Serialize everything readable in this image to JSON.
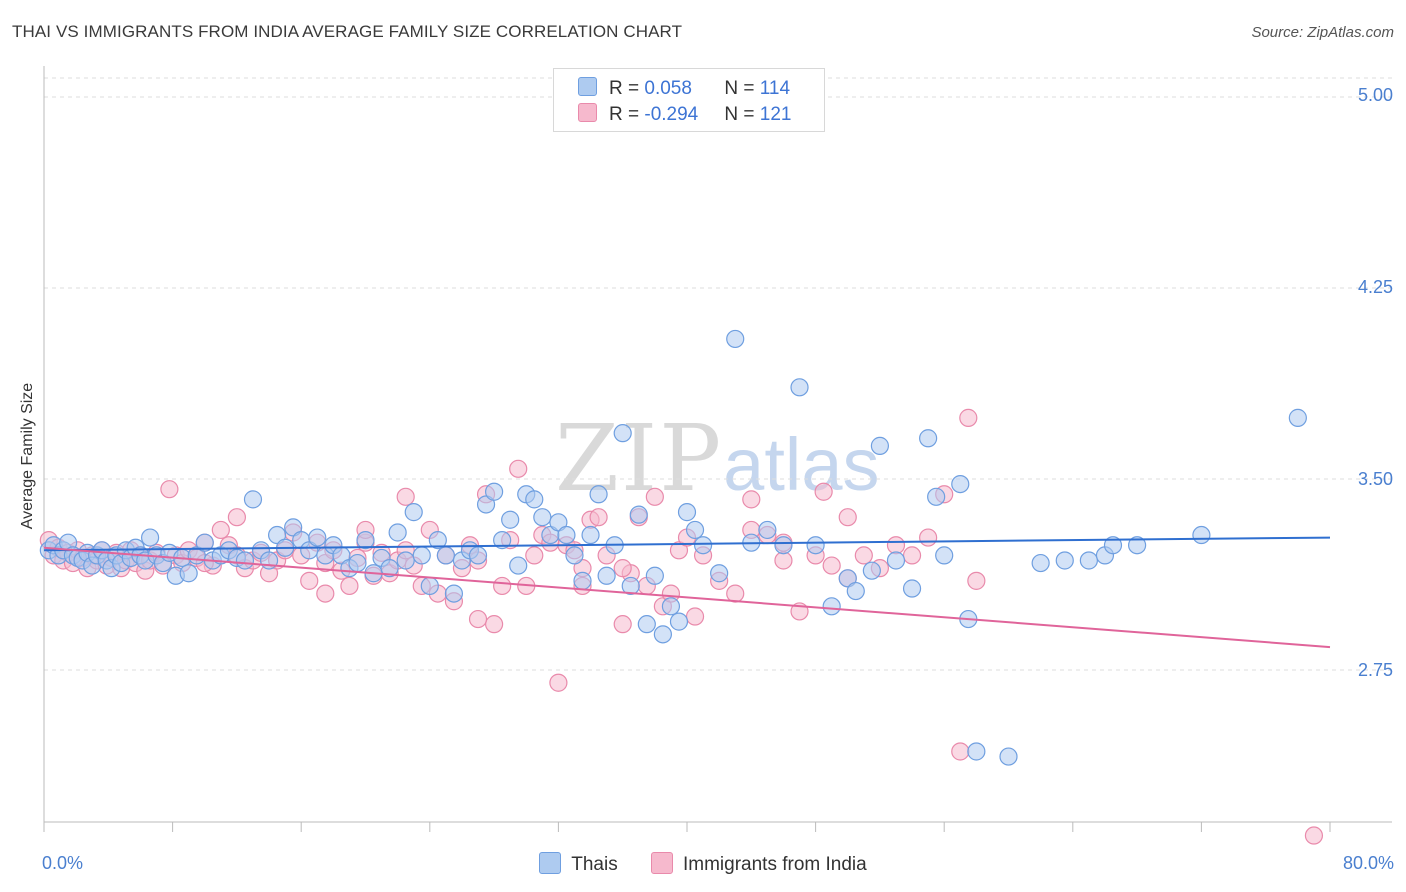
{
  "header": {
    "title": "THAI VS IMMIGRANTS FROM INDIA AVERAGE FAMILY SIZE CORRELATION CHART",
    "source": "Source: ZipAtlas.com"
  },
  "watermark": {
    "zip": "ZIP",
    "atlas": "atlas"
  },
  "legend": {
    "rows": [
      {
        "r_label": "R = ",
        "r_value": "0.058",
        "n_label": "N = ",
        "n_value": "114"
      },
      {
        "r_label": "R = ",
        "r_value": "-0.294",
        "n_label": "N = ",
        "n_value": "121"
      }
    ]
  },
  "colors": {
    "thais_fill": "#aecbf0",
    "thais_stroke": "#6f9fe0",
    "thais_line": "#2f6fd0",
    "india_fill": "#f6b9cd",
    "india_stroke": "#e98aab",
    "india_line": "#e0649a",
    "grid": "#dddddd",
    "tick_text": "#4a7fcf"
  },
  "axes": {
    "ylabel": "Average Family Size",
    "y_ticks": [
      "5.00",
      "4.25",
      "3.50",
      "2.75"
    ],
    "x_min_label": "0.0%",
    "x_max_label": "80.0%"
  },
  "bottom_legend": {
    "thais": "Thais",
    "india": "Immigrants from India"
  },
  "chart_data": {
    "type": "scatter",
    "title": "THAI VS IMMIGRANTS FROM INDIA AVERAGE FAMILY SIZE CORRELATION CHART",
    "xlabel": "",
    "ylabel": "Average Family Size",
    "xlim": [
      0,
      80
    ],
    "ylim": [
      2.0,
      5.1
    ],
    "y_ticks": [
      2.75,
      3.5,
      4.25,
      5.0
    ],
    "grid": true,
    "legend_placement": "top-center",
    "series": [
      {
        "name": "Thais",
        "r": 0.058,
        "n": 114,
        "trend": {
          "x": [
            0,
            80
          ],
          "y": [
            3.22,
            3.27
          ]
        },
        "points": [
          [
            0.3,
            3.22
          ],
          [
            0.6,
            3.24
          ],
          [
            0.9,
            3.2
          ],
          [
            1.2,
            3.22
          ],
          [
            1.5,
            3.25
          ],
          [
            1.8,
            3.2
          ],
          [
            2.1,
            3.19
          ],
          [
            2.4,
            3.18
          ],
          [
            2.7,
            3.21
          ],
          [
            3.0,
            3.16
          ],
          [
            3.3,
            3.2
          ],
          [
            3.6,
            3.22
          ],
          [
            3.9,
            3.18
          ],
          [
            4.2,
            3.15
          ],
          [
            4.5,
            3.2
          ],
          [
            4.8,
            3.17
          ],
          [
            5.1,
            3.22
          ],
          [
            5.4,
            3.19
          ],
          [
            5.7,
            3.23
          ],
          [
            6.0,
            3.2
          ],
          [
            6.3,
            3.18
          ],
          [
            6.6,
            3.27
          ],
          [
            7.0,
            3.2
          ],
          [
            7.4,
            3.17
          ],
          [
            7.8,
            3.21
          ],
          [
            8.2,
            3.12
          ],
          [
            8.6,
            3.19
          ],
          [
            9.0,
            3.13
          ],
          [
            9.5,
            3.2
          ],
          [
            10.0,
            3.25
          ],
          [
            10.5,
            3.18
          ],
          [
            11.0,
            3.2
          ],
          [
            11.5,
            3.22
          ],
          [
            12.0,
            3.19
          ],
          [
            12.5,
            3.18
          ],
          [
            13.0,
            3.42
          ],
          [
            13.5,
            3.22
          ],
          [
            14.0,
            3.18
          ],
          [
            14.5,
            3.28
          ],
          [
            15.0,
            3.23
          ],
          [
            15.5,
            3.31
          ],
          [
            16.0,
            3.26
          ],
          [
            16.5,
            3.22
          ],
          [
            17.0,
            3.27
          ],
          [
            17.5,
            3.2
          ],
          [
            18.0,
            3.24
          ],
          [
            18.5,
            3.2
          ],
          [
            19.0,
            3.15
          ],
          [
            19.5,
            3.17
          ],
          [
            20.0,
            3.26
          ],
          [
            20.5,
            3.13
          ],
          [
            21.0,
            3.19
          ],
          [
            21.5,
            3.15
          ],
          [
            22.0,
            3.29
          ],
          [
            22.5,
            3.18
          ],
          [
            23.0,
            3.37
          ],
          [
            23.5,
            3.2
          ],
          [
            24.0,
            3.08
          ],
          [
            24.5,
            3.26
          ],
          [
            25.0,
            3.2
          ],
          [
            25.5,
            3.05
          ],
          [
            26.0,
            3.18
          ],
          [
            26.5,
            3.22
          ],
          [
            27.0,
            3.2
          ],
          [
            27.5,
            3.4
          ],
          [
            28.0,
            3.45
          ],
          [
            28.5,
            3.26
          ],
          [
            29.0,
            3.34
          ],
          [
            29.5,
            3.16
          ],
          [
            30.0,
            3.44
          ],
          [
            30.5,
            3.42
          ],
          [
            31.0,
            3.35
          ],
          [
            31.5,
            3.28
          ],
          [
            32.0,
            3.33
          ],
          [
            32.5,
            3.28
          ],
          [
            33.0,
            3.2
          ],
          [
            33.5,
            3.1
          ],
          [
            34.0,
            3.28
          ],
          [
            34.5,
            3.44
          ],
          [
            35.0,
            3.12
          ],
          [
            35.5,
            3.24
          ],
          [
            36.0,
            3.68
          ],
          [
            36.5,
            3.08
          ],
          [
            37.0,
            3.36
          ],
          [
            37.5,
            2.93
          ],
          [
            38.0,
            3.12
          ],
          [
            38.5,
            2.89
          ],
          [
            39.0,
            3.0
          ],
          [
            39.5,
            2.94
          ],
          [
            40.0,
            3.37
          ],
          [
            40.5,
            3.3
          ],
          [
            41.0,
            3.24
          ],
          [
            42.0,
            3.13
          ],
          [
            43.0,
            4.05
          ],
          [
            44.0,
            3.25
          ],
          [
            45.0,
            3.3
          ],
          [
            46.0,
            3.24
          ],
          [
            47.0,
            3.86
          ],
          [
            48.0,
            3.24
          ],
          [
            49.0,
            3.0
          ],
          [
            50.0,
            3.11
          ],
          [
            50.5,
            3.06
          ],
          [
            51.5,
            3.14
          ],
          [
            52.0,
            3.63
          ],
          [
            53.0,
            3.18
          ],
          [
            54.0,
            3.07
          ],
          [
            55.0,
            3.66
          ],
          [
            55.5,
            3.43
          ],
          [
            56.0,
            3.2
          ],
          [
            57.0,
            3.48
          ],
          [
            57.5,
            2.95
          ],
          [
            58.0,
            2.43
          ],
          [
            60.0,
            2.41
          ],
          [
            62.0,
            3.17
          ],
          [
            63.5,
            3.18
          ],
          [
            65.0,
            3.18
          ],
          [
            66.0,
            3.2
          ],
          [
            66.5,
            3.24
          ],
          [
            68.0,
            3.24
          ],
          [
            72.0,
            3.28
          ],
          [
            78.0,
            3.74
          ]
        ]
      },
      {
        "name": "Immigrants from India",
        "r": -0.294,
        "n": 121,
        "trend": {
          "x": [
            0,
            80
          ],
          "y": [
            3.23,
            2.84
          ]
        },
        "points": [
          [
            0.3,
            3.26
          ],
          [
            0.6,
            3.2
          ],
          [
            0.9,
            3.23
          ],
          [
            1.2,
            3.18
          ],
          [
            1.5,
            3.21
          ],
          [
            1.8,
            3.17
          ],
          [
            2.1,
            3.22
          ],
          [
            2.4,
            3.19
          ],
          [
            2.7,
            3.15
          ],
          [
            3.0,
            3.2
          ],
          [
            3.3,
            3.18
          ],
          [
            3.6,
            3.22
          ],
          [
            3.9,
            3.16
          ],
          [
            4.2,
            3.19
          ],
          [
            4.5,
            3.21
          ],
          [
            4.8,
            3.15
          ],
          [
            5.1,
            3.18
          ],
          [
            5.4,
            3.22
          ],
          [
            5.7,
            3.17
          ],
          [
            6.0,
            3.2
          ],
          [
            6.3,
            3.14
          ],
          [
            6.6,
            3.18
          ],
          [
            7.0,
            3.21
          ],
          [
            7.4,
            3.16
          ],
          [
            7.8,
            3.46
          ],
          [
            8.2,
            3.2
          ],
          [
            8.6,
            3.17
          ],
          [
            9.0,
            3.22
          ],
          [
            9.5,
            3.19
          ],
          [
            10.0,
            3.25
          ],
          [
            10.5,
            3.16
          ],
          [
            11.0,
            3.3
          ],
          [
            11.5,
            3.24
          ],
          [
            12.0,
            3.2
          ],
          [
            12.5,
            3.15
          ],
          [
            13.0,
            3.18
          ],
          [
            13.5,
            3.21
          ],
          [
            14.0,
            3.13
          ],
          [
            14.5,
            3.18
          ],
          [
            15.0,
            3.22
          ],
          [
            15.5,
            3.29
          ],
          [
            16.0,
            3.2
          ],
          [
            16.5,
            3.1
          ],
          [
            17.0,
            3.25
          ],
          [
            17.5,
            3.17
          ],
          [
            18.0,
            3.22
          ],
          [
            18.5,
            3.14
          ],
          [
            19.0,
            3.08
          ],
          [
            19.5,
            3.19
          ],
          [
            20.0,
            3.25
          ],
          [
            20.5,
            3.12
          ],
          [
            21.0,
            3.21
          ],
          [
            21.5,
            3.13
          ],
          [
            22.0,
            3.18
          ],
          [
            22.5,
            3.22
          ],
          [
            23.0,
            3.16
          ],
          [
            23.5,
            3.08
          ],
          [
            24.0,
            3.3
          ],
          [
            24.5,
            3.05
          ],
          [
            25.0,
            3.2
          ],
          [
            25.5,
            3.02
          ],
          [
            26.0,
            3.15
          ],
          [
            26.5,
            3.24
          ],
          [
            27.0,
            3.18
          ],
          [
            27.5,
            3.44
          ],
          [
            28.0,
            2.93
          ],
          [
            28.5,
            3.08
          ],
          [
            29.0,
            3.26
          ],
          [
            29.5,
            3.54
          ],
          [
            30.0,
            3.08
          ],
          [
            30.5,
            3.2
          ],
          [
            31.0,
            3.28
          ],
          [
            31.5,
            3.25
          ],
          [
            32.0,
            2.7
          ],
          [
            32.5,
            3.24
          ],
          [
            33.0,
            3.22
          ],
          [
            33.5,
            3.08
          ],
          [
            34.0,
            3.34
          ],
          [
            34.5,
            3.35
          ],
          [
            35.0,
            3.2
          ],
          [
            36.0,
            2.93
          ],
          [
            36.5,
            3.13
          ],
          [
            37.0,
            3.35
          ],
          [
            37.5,
            3.08
          ],
          [
            38.0,
            3.43
          ],
          [
            38.5,
            3.0
          ],
          [
            39.0,
            3.05
          ],
          [
            39.5,
            3.22
          ],
          [
            40.0,
            3.27
          ],
          [
            40.5,
            2.96
          ],
          [
            41.0,
            3.2
          ],
          [
            42.0,
            3.1
          ],
          [
            43.0,
            3.05
          ],
          [
            44.0,
            3.42
          ],
          [
            45.0,
            3.28
          ],
          [
            46.0,
            3.18
          ],
          [
            47.0,
            2.98
          ],
          [
            48.0,
            3.2
          ],
          [
            49.0,
            3.16
          ],
          [
            50.0,
            3.11
          ],
          [
            51.0,
            3.2
          ],
          [
            52.0,
            3.15
          ],
          [
            53.0,
            3.24
          ],
          [
            54.0,
            3.2
          ],
          [
            55.0,
            3.27
          ],
          [
            56.0,
            3.44
          ],
          [
            57.0,
            2.43
          ],
          [
            57.5,
            3.74
          ],
          [
            58.0,
            3.1
          ],
          [
            27.0,
            2.95
          ],
          [
            20.0,
            3.3
          ],
          [
            22.5,
            3.43
          ],
          [
            33.5,
            3.15
          ],
          [
            36.0,
            3.15
          ],
          [
            12.0,
            3.35
          ],
          [
            10.0,
            3.17
          ],
          [
            17.5,
            3.05
          ],
          [
            44.0,
            3.3
          ],
          [
            46.0,
            3.25
          ],
          [
            48.5,
            3.45
          ],
          [
            50.0,
            3.35
          ],
          [
            79.0,
            2.1
          ]
        ]
      }
    ]
  }
}
